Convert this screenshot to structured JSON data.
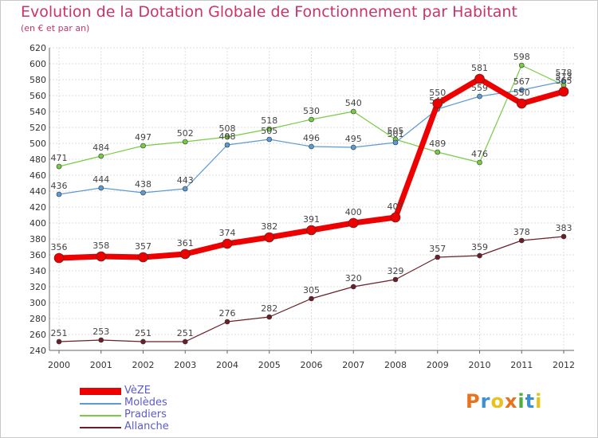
{
  "title": "Evolution de la Dotation Globale de Fonctionnement par Habitant",
  "subtitle": "(en € et par an)",
  "logo": {
    "text": "Proxiti",
    "letters": [
      "P",
      "r",
      "o",
      "x",
      "i",
      "t",
      "i"
    ]
  },
  "chart_data": {
    "type": "line",
    "title": "Evolution de la Dotation Globale de Fonctionnement par Habitant",
    "subtitle": "(en € et par an)",
    "xlabel": "",
    "ylabel": "",
    "ylim": [
      240,
      620
    ],
    "yticks": [
      240,
      260,
      280,
      300,
      320,
      340,
      360,
      380,
      400,
      420,
      440,
      460,
      480,
      500,
      520,
      540,
      560,
      580,
      600,
      620
    ],
    "grid": true,
    "legend_position": "bottom-left",
    "categories": [
      "2000",
      "2001",
      "2002",
      "2003",
      "2004",
      "2005",
      "2006",
      "2007",
      "2008",
      "2009",
      "2010",
      "2011",
      "2012"
    ],
    "series": [
      {
        "name": "Allanche",
        "color": "#6b1f2a",
        "width": 1.2,
        "marker": 3,
        "values": [
          251,
          253,
          251,
          251,
          276,
          282,
          305,
          320,
          329,
          357,
          359,
          378,
          383
        ]
      },
      {
        "name": "Pradiers",
        "color": "#77cc44",
        "width": 1.2,
        "marker": 3,
        "values": [
          471,
          484,
          497,
          502,
          508,
          518,
          530,
          540,
          505,
          489,
          476,
          598,
          573
        ]
      },
      {
        "name": "Molèdes",
        "color": "#5b9bd5",
        "width": 1.2,
        "marker": 3,
        "values": [
          436,
          444,
          438,
          443,
          498,
          505,
          496,
          495,
          501,
          543,
          559,
          567,
          578
        ]
      },
      {
        "name": "VèZE",
        "color": "#ee0000",
        "width": 7,
        "marker": 6,
        "values": [
          356,
          358,
          357,
          361,
          374,
          382,
          391,
          400,
          407,
          550,
          581,
          550,
          565
        ]
      }
    ],
    "legend": [
      "VèZE",
      "Molèdes",
      "Pradiers",
      "Allanche"
    ]
  }
}
